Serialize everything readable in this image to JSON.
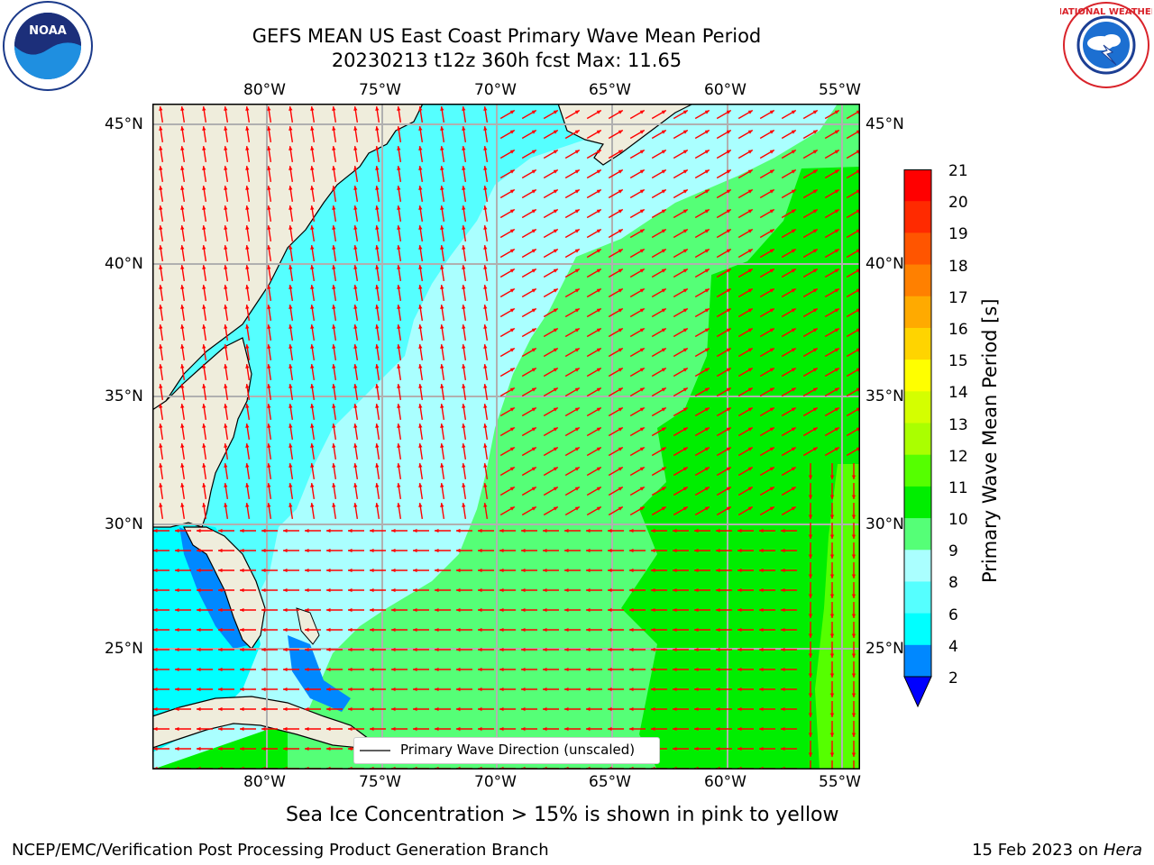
{
  "header": {
    "title_line1": "GEFS MEAN US East Coast Primary Wave Mean Period",
    "title_line2": "20230213 t12z 360h fcst   Max: 11.65"
  },
  "logos": {
    "left": {
      "icon": "noaa-logo",
      "text": "NOAA"
    },
    "right": {
      "icon": "nws-logo",
      "text": "NATIONAL WEATHER SERVICE"
    }
  },
  "map": {
    "lon_labels": [
      "80°W",
      "75°W",
      "70°W",
      "65°W",
      "60°W",
      "55°W"
    ],
    "lat_labels": [
      "45°N",
      "40°N",
      "35°N",
      "30°N",
      "25°N"
    ],
    "extent": {
      "lon_min": -85,
      "lon_max": -54.2,
      "lat_min": 20.5,
      "lat_max": 45.8
    },
    "legend_label": "Primary Wave Direction (unscaled)",
    "land_color": "#efeddc",
    "arrow_color": "#ff0000"
  },
  "colorbar": {
    "label": "Primary Wave Mean Period [s]",
    "ticks": [
      "21",
      "20",
      "19",
      "18",
      "17",
      "16",
      "15",
      "14",
      "13",
      "12",
      "11",
      "10",
      "9",
      "8",
      "6",
      "4",
      "2"
    ],
    "colors": [
      "#ff0000",
      "#ff2a00",
      "#ff5500",
      "#ff8000",
      "#ffaa00",
      "#ffd400",
      "#ffff00",
      "#d4ff00",
      "#aaff00",
      "#55ff00",
      "#00ee00",
      "#55ff77",
      "#aaffff",
      "#55ffff",
      "#00ffff",
      "#0088ff",
      "#0000ff"
    ]
  },
  "caption": "Sea Ice Concentration > 15% is shown in pink to yellow",
  "footer": {
    "left": "NCEP/EMC/Verification Post Processing Product Generation Branch",
    "right_prefix": "15 Feb 2023 on ",
    "right_host": "Hera"
  }
}
